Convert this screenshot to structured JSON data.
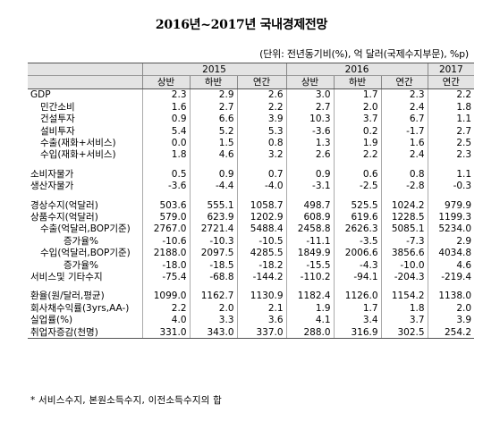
{
  "title": "2016년~2017년 국내경제전망",
  "unit": "(단위: 전년동기비(%), 억 달러(국제수지부문), %p)",
  "years": [
    "2015",
    "2016",
    "2017"
  ],
  "periods": [
    "상반",
    "하반",
    "연간",
    "상반",
    "하반",
    "연간",
    "연간"
  ],
  "rows": [
    {
      "label": "GDP",
      "values": [
        "2.3",
        "2.9",
        "2.6",
        "3.0",
        "1.7",
        "2.3",
        "2.2"
      ]
    },
    {
      "label": "민간소비",
      "values": [
        "1.6",
        "2.7",
        "2.2",
        "2.7",
        "2.0",
        "2.4",
        "1.8"
      ]
    },
    {
      "label": "건설투자",
      "values": [
        "0.9",
        "6.6",
        "3.9",
        "10.3",
        "3.7",
        "6.7",
        "1.1"
      ]
    },
    {
      "label": "설비투자",
      "values": [
        "5.4",
        "5.2",
        "5.3",
        "-3.6",
        "0.2",
        "-1.7",
        "2.7"
      ]
    },
    {
      "label": "수출(재화+서비스)",
      "values": [
        "0.0",
        "1.5",
        "0.8",
        "1.3",
        "1.9",
        "1.6",
        "2.5"
      ]
    },
    {
      "label": "수입(재화+서비스)",
      "values": [
        "1.8",
        "4.6",
        "3.2",
        "2.6",
        "2.2",
        "2.4",
        "2.3"
      ]
    },
    {
      "label": "소비자물가",
      "values": [
        "0.5",
        "0.9",
        "0.7",
        "0.9",
        "0.6",
        "0.8",
        "1.1"
      ]
    },
    {
      "label": "생산자물가",
      "values": [
        "-3.6",
        "-4.4",
        "-4.0",
        "-3.1",
        "-2.5",
        "-2.8",
        "-0.3"
      ]
    },
    {
      "label": "경상수지(억달러)",
      "values": [
        "503.6",
        "555.1",
        "1058.7",
        "498.7",
        "525.5",
        "1024.2",
        "979.9"
      ]
    },
    {
      "label": "상품수지(억달러)",
      "values": [
        "579.0",
        "623.9",
        "1202.9",
        "608.9",
        "619.6",
        "1228.5",
        "1199.3"
      ]
    },
    {
      "label": "수출(억달러,BOP기준)",
      "values": [
        "2767.0",
        "2721.4",
        "5488.4",
        "2458.8",
        "2626.3",
        "5085.1",
        "5234.0"
      ]
    },
    {
      "label": "증가율%",
      "values": [
        "-10.6",
        "-10.3",
        "-10.5",
        "-11.1",
        "-3.5",
        "-7.3",
        "2.9"
      ]
    },
    {
      "label": "수입(억달러,BOP기준)",
      "values": [
        "2188.0",
        "2097.5",
        "4285.5",
        "1849.9",
        "2006.6",
        "3856.6",
        "4034.8"
      ]
    },
    {
      "label": "증가율%",
      "values": [
        "-18.0",
        "-18.5",
        "-18.2",
        "-15.5",
        "-4.3",
        "-10.0",
        "4.6"
      ]
    },
    {
      "label": "서비스및 기타수지",
      "values": [
        "-75.4",
        "-68.8",
        "-144.2",
        "-110.2",
        "-94.1",
        "-204.3",
        "-219.4"
      ]
    },
    {
      "label": "환율(원/달러,평균)",
      "values": [
        "1099.0",
        "1162.7",
        "1130.9",
        "1182.4",
        "1126.0",
        "1154.2",
        "1138.0"
      ]
    },
    {
      "label": "회사채수익률(3yrs,AA-)",
      "values": [
        "2.2",
        "2.0",
        "2.1",
        "1.9",
        "1.7",
        "1.8",
        "2.0"
      ]
    },
    {
      "label": "실업률(%)",
      "values": [
        "4.0",
        "3.3",
        "3.6",
        "4.1",
        "3.4",
        "3.7",
        "3.9"
      ]
    },
    {
      "label": "취업자증감(천명)",
      "values": [
        "331.0",
        "343.0",
        "337.0",
        "288.0",
        "316.9",
        "302.5",
        "254.2"
      ]
    }
  ],
  "footnote": "* 서비스수지, 본원소득수지, 이전소득수지의 합"
}
